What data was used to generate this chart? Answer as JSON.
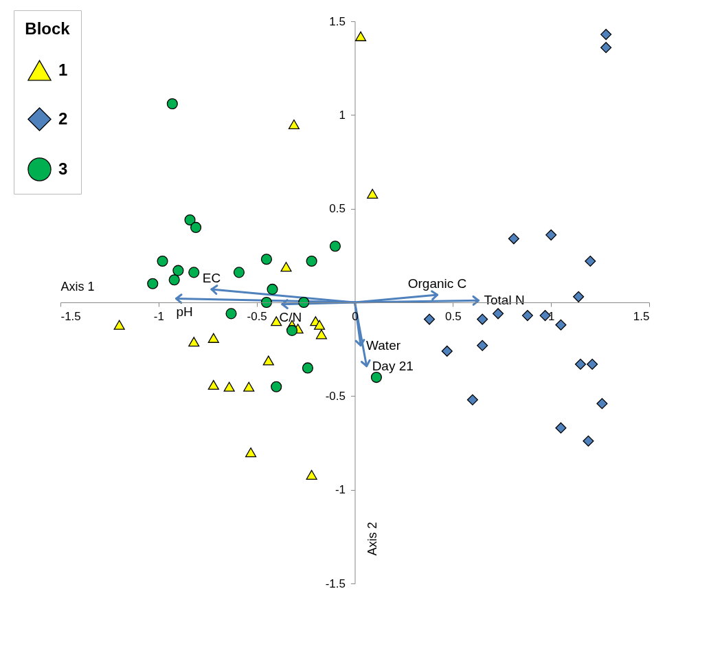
{
  "chart_data": {
    "type": "scatter",
    "xlabel": "Axis 1",
    "ylabel": "Axis 2",
    "legend_title": "Block",
    "legend": "top left",
    "grid": false,
    "xlim": [
      -1.5,
      1.5
    ],
    "ylim": [
      -1.5,
      1.5
    ],
    "xticks": [
      -1.5,
      -1,
      -0.5,
      0,
      0.5,
      1,
      1.5
    ],
    "yticks": [
      -1.5,
      -1,
      -0.5,
      {
        "value": 0,
        "label": null
      },
      0.5,
      1,
      1.5
    ],
    "series": [
      {
        "name": "1",
        "color": "#ffff00",
        "marker": "triangle",
        "x": [
          0.03,
          -0.31,
          0.09,
          -0.35,
          -1.2,
          -0.82,
          -0.72,
          -0.4,
          -0.32,
          -0.29,
          -0.2,
          -0.18,
          -0.17,
          -0.44,
          -0.72,
          -0.64,
          -0.54,
          -0.53,
          -0.22
        ],
        "values": [
          1.42,
          0.95,
          0.58,
          0.19,
          -0.12,
          -0.21,
          -0.19,
          -0.1,
          -0.12,
          -0.14,
          -0.1,
          -0.12,
          -0.17,
          -0.31,
          -0.44,
          -0.45,
          -0.45,
          -0.8,
          -0.92
        ]
      },
      {
        "name": "2",
        "color": "#4f81bd",
        "marker": "diamond",
        "x": [
          1.28,
          1.28,
          0.81,
          1.0,
          1.2,
          1.14,
          0.38,
          0.65,
          0.73,
          0.88,
          0.97,
          1.05,
          0.47,
          0.65,
          1.15,
          1.21,
          0.6,
          1.26,
          1.05,
          1.19
        ],
        "values": [
          1.43,
          1.36,
          0.34,
          0.36,
          0.22,
          0.03,
          -0.09,
          -0.09,
          -0.06,
          -0.07,
          -0.07,
          -0.12,
          -0.26,
          -0.23,
          -0.33,
          -0.33,
          -0.52,
          -0.54,
          -0.67,
          -0.74
        ]
      },
      {
        "name": "3",
        "color": "#00b050",
        "marker": "circle",
        "x": [
          -0.93,
          -0.84,
          -0.81,
          -0.1,
          -0.98,
          -0.45,
          -0.22,
          -0.9,
          -0.82,
          -0.59,
          -0.92,
          -1.03,
          -0.42,
          -0.45,
          -0.26,
          -0.63,
          -0.32,
          -0.24,
          -0.4,
          0.11
        ],
        "values": [
          1.06,
          0.44,
          0.4,
          0.3,
          0.22,
          0.23,
          0.22,
          0.17,
          0.16,
          0.16,
          0.12,
          0.1,
          0.07,
          0.0,
          0.0,
          -0.06,
          -0.15,
          -0.35,
          -0.45,
          -0.4
        ]
      },
      {
        "type": "line",
        "color": "#4f81bd",
        "x": [
          0,
          -0.91
        ],
        "values": [
          0,
          0.02
        ]
      },
      {
        "type": "line",
        "color": "#4f81bd",
        "x": [
          0,
          -0.73
        ],
        "values": [
          0,
          0.07
        ]
      },
      {
        "type": "line",
        "color": "#4f81bd",
        "x": [
          0,
          -0.37
        ],
        "values": [
          0,
          -0.01
        ]
      },
      {
        "type": "line",
        "color": "#4f81bd",
        "x": [
          0,
          0.42
        ],
        "values": [
          0,
          0.04
        ]
      },
      {
        "type": "line",
        "color": "#4f81bd",
        "x": [
          0,
          0.63
        ],
        "values": [
          0,
          0.01
        ]
      },
      {
        "type": "line",
        "color": "#4f81bd",
        "x": [
          0,
          0.03
        ],
        "values": [
          0,
          -0.23
        ]
      },
      {
        "type": "line",
        "color": "#4f81bd",
        "x": [
          0,
          0.06
        ],
        "values": [
          0,
          -0.34
        ]
      }
    ],
    "annotations": [
      {
        "text": "pH",
        "x": -0.91,
        "y": 0.02
      },
      {
        "text": "EC",
        "x": -0.73,
        "y": 0.07
      },
      {
        "text": "C/N",
        "x": -0.37,
        "y": -0.01
      },
      {
        "text": "Organic C",
        "x": 0.42,
        "y": 0.04
      },
      {
        "text": "Total N",
        "x": 0.63,
        "y": 0.01
      },
      {
        "text": "Water",
        "x": 0.03,
        "y": -0.23
      },
      {
        "text": "Day 21",
        "x": 0.06,
        "y": -0.34
      }
    ]
  }
}
